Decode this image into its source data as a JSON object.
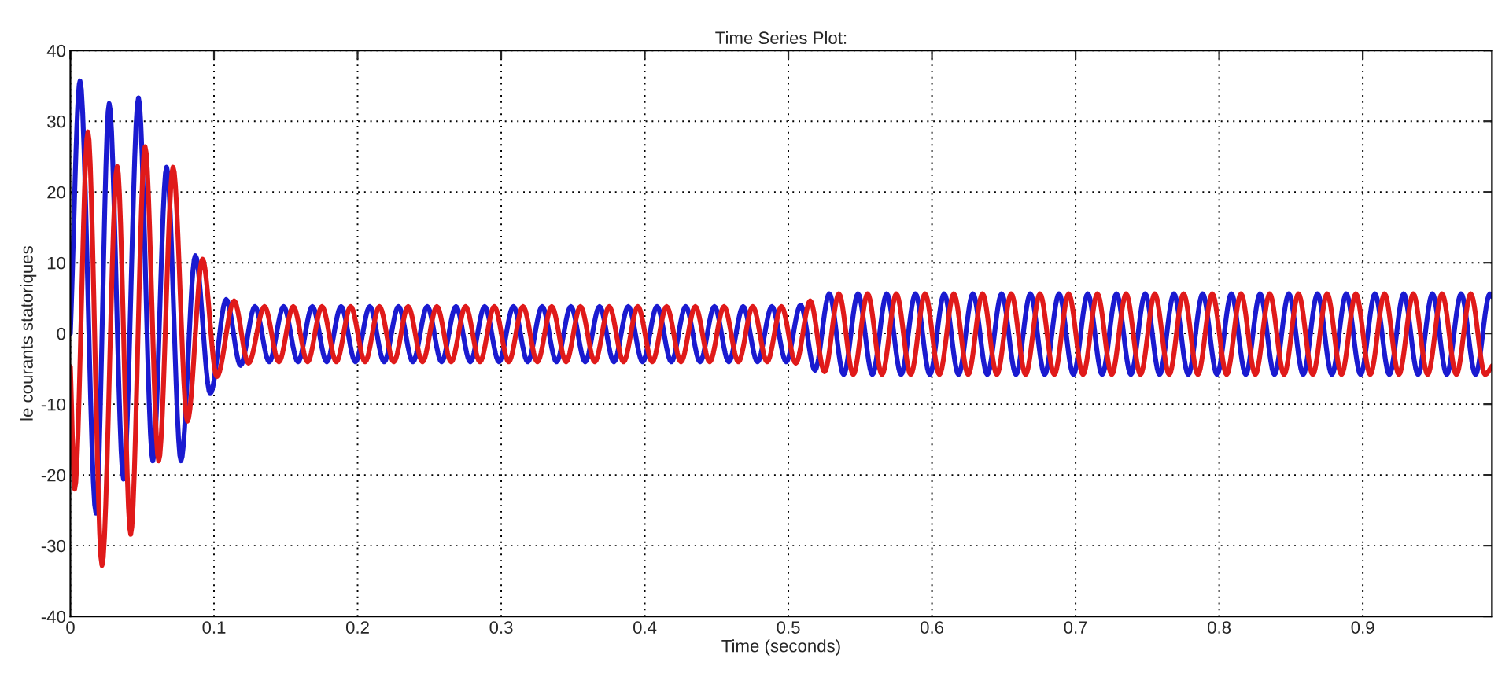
{
  "chart_data": {
    "type": "line",
    "title": "Time Series Plot:",
    "xlabel": "Time (seconds)",
    "ylabel": "le courants statoriques",
    "xlim": [
      0,
      0.99
    ],
    "xticks": [
      0,
      0.1,
      0.2,
      0.3,
      0.4,
      0.5,
      0.6,
      0.7,
      0.8,
      0.9
    ],
    "ylim": [
      -40,
      40
    ],
    "yticks": [
      -40,
      -30,
      -20,
      -10,
      0,
      10,
      20,
      30,
      40
    ],
    "grid": true,
    "line_style": "solid",
    "series": [
      {
        "color": "#1a1ad0",
        "x": [
          0,
          0.0067,
          0.0178,
          0.027,
          0.037,
          0.0474,
          0.0574,
          0.067,
          0.077,
          0.087,
          0.0974,
          0.1085,
          0.1185,
          0.1285,
          0.1385,
          0.1485,
          0.1585,
          0.1685,
          0.1785,
          0.1885,
          0.1985,
          0.2085,
          0.2185,
          0.2285,
          0.2385,
          0.2485,
          0.2585,
          0.2685,
          0.2785,
          0.2885,
          0.2985,
          0.3085,
          0.3185,
          0.3285,
          0.3385,
          0.3485,
          0.3585,
          0.3685,
          0.3785,
          0.3885,
          0.3985,
          0.4085,
          0.4185,
          0.4285,
          0.4385,
          0.4485,
          0.4585,
          0.4685,
          0.4785,
          0.4885,
          0.4985,
          0.5085,
          0.5185,
          0.5285,
          0.5385,
          0.5485,
          0.5585,
          0.5685,
          0.5785,
          0.5885,
          0.5985,
          0.6085,
          0.6185,
          0.6285,
          0.6385,
          0.6485,
          0.6585,
          0.6685,
          0.6785,
          0.6885,
          0.6985,
          0.7085,
          0.7185,
          0.7285,
          0.7385,
          0.7485,
          0.7585,
          0.7685,
          0.7785,
          0.7885,
          0.7985,
          0.8085,
          0.8185,
          0.8285,
          0.8385,
          0.8485,
          0.8585,
          0.8685,
          0.8785,
          0.8885,
          0.8985,
          0.9085,
          0.9185,
          0.9285,
          0.9385,
          0.9485,
          0.9585,
          0.9685,
          0.9785,
          0.9885,
          0.99
        ],
        "values": [
          0,
          35.7,
          -25.4,
          32.5,
          -20.6,
          33.3,
          -18,
          23.5,
          -18,
          11,
          -8.5,
          4.8,
          -4.5,
          3.8,
          -4,
          3.8,
          -4,
          3.8,
          -4,
          3.8,
          -4,
          3.8,
          -4,
          3.8,
          -4,
          3.8,
          -4,
          3.8,
          -4,
          3.8,
          -4,
          3.8,
          -4,
          3.8,
          -4,
          3.8,
          -4,
          3.8,
          -4,
          3.8,
          -4,
          3.8,
          -4,
          3.8,
          -4,
          3.8,
          -4,
          3.8,
          -4,
          3.8,
          -4,
          4,
          -5.2,
          5.6,
          -5.8,
          5.6,
          -5.8,
          5.6,
          -5.8,
          5.6,
          -5.8,
          5.6,
          -5.8,
          5.6,
          -5.8,
          5.6,
          -5.8,
          5.6,
          -5.8,
          5.6,
          -5.8,
          5.6,
          -5.8,
          5.6,
          -5.8,
          5.6,
          -5.8,
          5.6,
          -5.8,
          5.6,
          -5.8,
          5.6,
          -5.8,
          5.6,
          -5.8,
          5.6,
          -5.8,
          5.6,
          -5.8,
          5.6,
          -5.8,
          5.6,
          -5.8,
          5.6,
          -5.8,
          5.6,
          -5.8,
          5.6,
          -5.8,
          5.6,
          5.2
        ]
      },
      {
        "color": "#e01a1a",
        "x": [
          0,
          0.003,
          0.0122,
          0.022,
          0.0326,
          0.042,
          0.052,
          0.0615,
          0.0715,
          0.0815,
          0.092,
          0.102,
          0.114,
          0.124,
          0.1352,
          0.1452,
          0.1552,
          0.1652,
          0.1752,
          0.1852,
          0.1952,
          0.2052,
          0.2152,
          0.2252,
          0.2352,
          0.2452,
          0.2552,
          0.2652,
          0.2752,
          0.2852,
          0.2952,
          0.3052,
          0.3152,
          0.3252,
          0.3352,
          0.3452,
          0.3552,
          0.3652,
          0.3752,
          0.3852,
          0.3952,
          0.4052,
          0.4152,
          0.4252,
          0.4352,
          0.4452,
          0.4552,
          0.4652,
          0.4752,
          0.4852,
          0.4952,
          0.5052,
          0.5152,
          0.5252,
          0.5352,
          0.5452,
          0.5552,
          0.5652,
          0.5752,
          0.5852,
          0.5952,
          0.6052,
          0.6152,
          0.6252,
          0.6352,
          0.6452,
          0.6552,
          0.6652,
          0.6752,
          0.6852,
          0.6952,
          0.7052,
          0.7152,
          0.7252,
          0.7352,
          0.7452,
          0.7552,
          0.7652,
          0.7752,
          0.7852,
          0.7952,
          0.8052,
          0.8152,
          0.8252,
          0.8352,
          0.8452,
          0.8552,
          0.8652,
          0.8752,
          0.8852,
          0.8952,
          0.9052,
          0.9152,
          0.9252,
          0.9352,
          0.9452,
          0.9552,
          0.9652,
          0.9752,
          0.9852,
          0.99
        ],
        "values": [
          -4.7,
          -22,
          28.5,
          -32.8,
          23.6,
          -28.4,
          26.4,
          -18,
          23.5,
          -12.4,
          10.5,
          -6.1,
          4.6,
          -4.2,
          3.8,
          -4,
          3.8,
          -4,
          3.8,
          -4,
          3.8,
          -4,
          3.8,
          -4,
          3.8,
          -4,
          3.8,
          -4,
          3.8,
          -4,
          3.8,
          -4,
          3.8,
          -4,
          3.8,
          -4,
          3.8,
          -4,
          3.8,
          -4,
          3.8,
          -4,
          3.8,
          -4,
          3.8,
          -4,
          3.8,
          -4,
          3.8,
          -4,
          3.8,
          -4.2,
          4.6,
          -5.4,
          5.6,
          -5.8,
          5.6,
          -5.8,
          5.6,
          -5.8,
          5.6,
          -5.8,
          5.6,
          -5.8,
          5.6,
          -5.8,
          5.6,
          -5.8,
          5.6,
          -5.8,
          5.6,
          -5.8,
          5.6,
          -5.8,
          5.6,
          -5.8,
          5.6,
          -5.8,
          5.6,
          -5.8,
          5.6,
          -5.8,
          5.6,
          -5.8,
          5.6,
          -5.8,
          5.6,
          -5.8,
          5.6,
          -5.8,
          5.6,
          -5.8,
          5.6,
          -5.8,
          5.6,
          -5.8,
          5.6,
          -5.8,
          5.6,
          -5.8,
          -4.6
        ]
      }
    ]
  }
}
